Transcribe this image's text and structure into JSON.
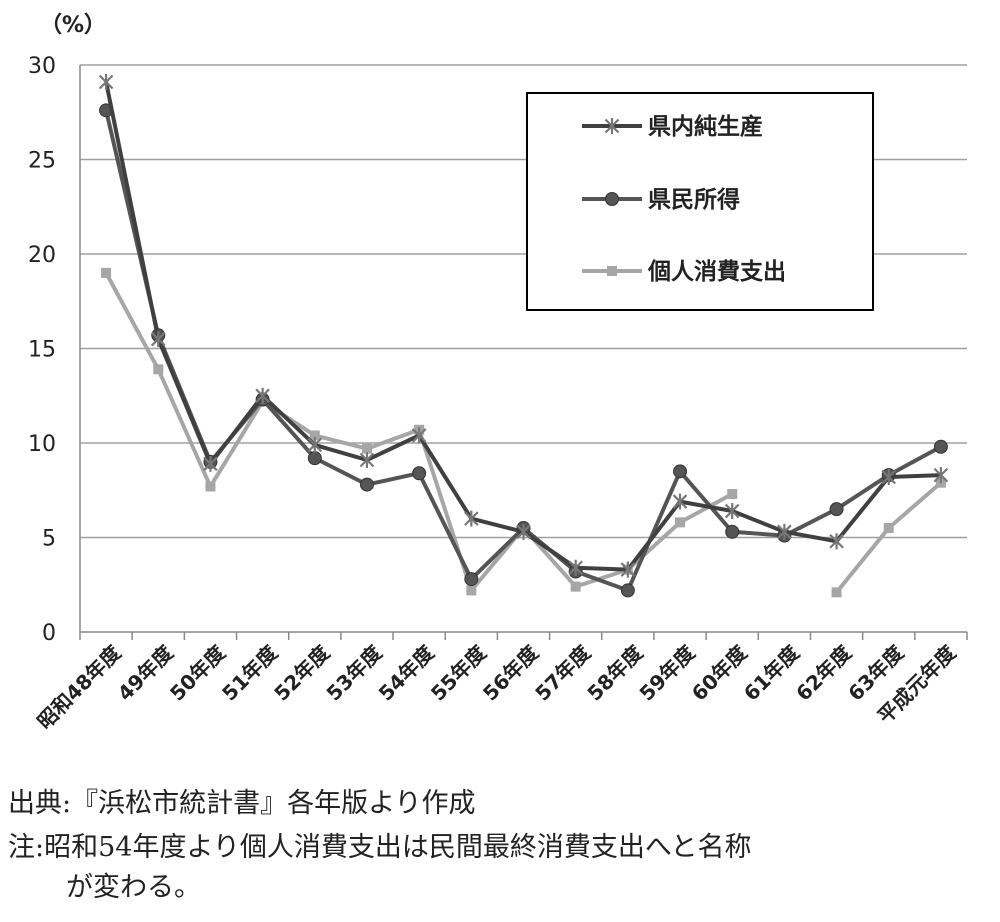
{
  "chart_data": {
    "type": "line",
    "unit_label": "（%）",
    "ylim": [
      0,
      30
    ],
    "yticks": [
      0,
      5,
      10,
      15,
      20,
      25,
      30
    ],
    "grid": true,
    "legend_position": "top-right",
    "categories": [
      "昭和48年度",
      "49年度",
      "50年度",
      "51年度",
      "52年度",
      "53年度",
      "54年度",
      "55年度",
      "56年度",
      "57年度",
      "58年度",
      "59年度",
      "60年度",
      "61年度",
      "62年度",
      "63年度",
      "平成元年度"
    ],
    "series": [
      {
        "name": "県内純生産",
        "marker": "asterisk",
        "color": "#404040",
        "values": [
          29.1,
          15.5,
          8.9,
          12.5,
          9.9,
          9.1,
          10.4,
          6.0,
          5.3,
          3.4,
          3.3,
          6.9,
          6.4,
          5.3,
          4.8,
          8.2,
          8.3
        ]
      },
      {
        "name": "県民所得",
        "marker": "circle",
        "color": "#555555",
        "values": [
          27.6,
          15.7,
          9.0,
          12.3,
          9.2,
          7.8,
          8.4,
          2.8,
          5.5,
          3.2,
          2.2,
          8.5,
          5.3,
          5.1,
          6.5,
          8.3,
          9.8
        ]
      },
      {
        "name": "個人消費支出",
        "marker": "square",
        "color": "#a6a6a6",
        "values": [
          19.0,
          13.9,
          7.7,
          12.2,
          10.4,
          9.7,
          10.7,
          2.2,
          5.5,
          2.4,
          3.3,
          5.8,
          7.3,
          null,
          2.1,
          5.5,
          7.9
        ]
      }
    ]
  },
  "notes": {
    "source": "出典:『浜松市統計書』各年版より作成",
    "note_line1": "注:昭和54年度より個人消費支出は民間最終消費支出へと名称",
    "note_line2": "が変わる。"
  }
}
